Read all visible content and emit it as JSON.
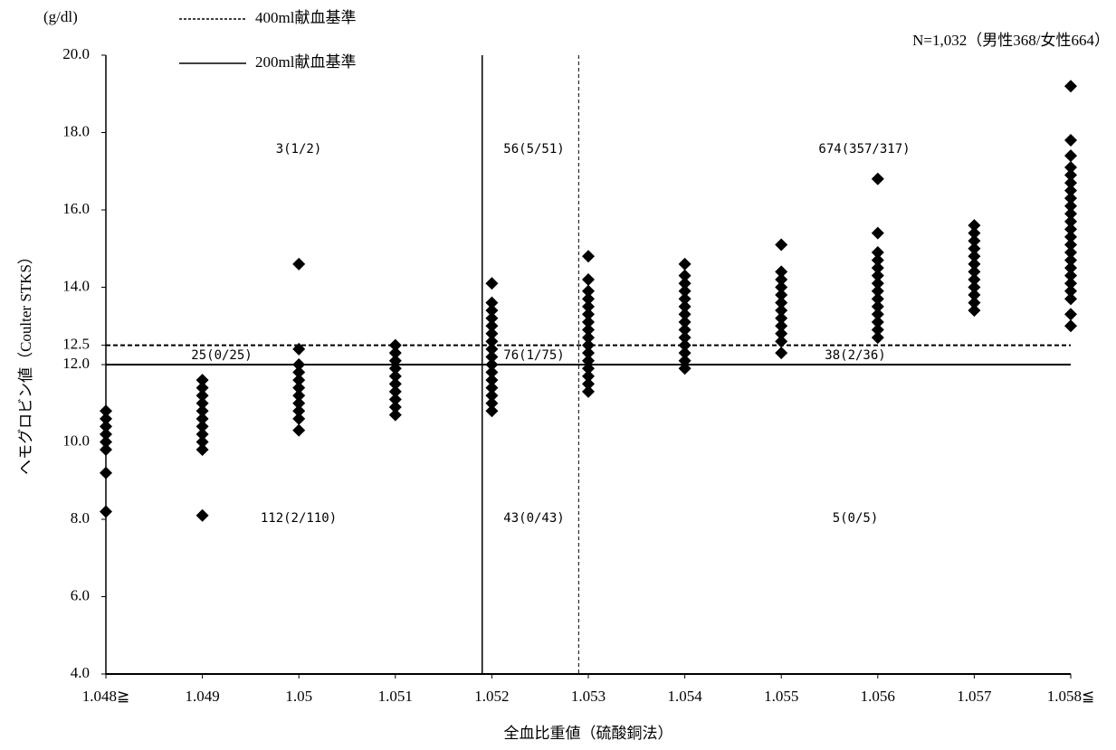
{
  "chart_data": {
    "type": "scatter",
    "unit_label": "(g/dl)",
    "subtitle": "N=1,032（男性368/女性664）",
    "y_label": "ヘモグロビン値（Coulter STKS）",
    "x_label": "全血比重値（硫酸銅法）",
    "color": "#000000",
    "xlim": [
      1.048,
      1.058
    ],
    "xticks": [
      {
        "value": 1.048,
        "label": "1.048≧"
      },
      1.049,
      1.05,
      1.051,
      1.052,
      1.053,
      1.054,
      1.055,
      1.056,
      1.057,
      {
        "value": 1.058,
        "label": "1.058≦"
      }
    ],
    "ylim": [
      4,
      20
    ],
    "yticks": [
      {
        "value": 4,
        "label": "4.0"
      },
      {
        "value": 6,
        "label": "6.0"
      },
      {
        "value": 8,
        "label": "8.0"
      },
      {
        "value": 10,
        "label": "10.0"
      },
      {
        "value": 12,
        "label": "12.0"
      },
      12.5,
      {
        "value": 14,
        "label": "14.0"
      },
      {
        "value": 16,
        "label": "16.0"
      },
      {
        "value": 18,
        "label": "18.0"
      },
      {
        "value": 20,
        "label": "20.0"
      }
    ],
    "reference_lines": [
      {
        "name": "400ml献血基準",
        "value": 12.5,
        "style": "dashed"
      },
      {
        "name": "200ml献血基準",
        "value": 12.0,
        "style": "solid"
      }
    ],
    "vertical_lines": [
      {
        "value": 1.0519,
        "style": "solid"
      },
      {
        "value": 1.0529,
        "style": "dashed"
      }
    ],
    "annotations": [
      "3(1/2)",
      "56(5/51)",
      "674(357/317)",
      "25(0/25)",
      "76(1/75)",
      "38(2/36)",
      "112(2/110)",
      "43(0/43)",
      "5(0/5)"
    ],
    "x": [
      1.048,
      1.048,
      1.048,
      1.048,
      1.048,
      1.048,
      1.048,
      1.048,
      1.049,
      1.049,
      1.049,
      1.049,
      1.049,
      1.049,
      1.049,
      1.049,
      1.049,
      1.049,
      1.049,
      1.05,
      1.05,
      1.05,
      1.05,
      1.05,
      1.05,
      1.05,
      1.05,
      1.05,
      1.05,
      1.05,
      1.051,
      1.051,
      1.051,
      1.051,
      1.051,
      1.051,
      1.051,
      1.051,
      1.051,
      1.051,
      1.052,
      1.052,
      1.052,
      1.052,
      1.052,
      1.052,
      1.052,
      1.052,
      1.052,
      1.052,
      1.052,
      1.052,
      1.052,
      1.052,
      1.052,
      1.052,
      1.053,
      1.053,
      1.053,
      1.053,
      1.053,
      1.053,
      1.053,
      1.053,
      1.053,
      1.053,
      1.053,
      1.053,
      1.053,
      1.053,
      1.053,
      1.053,
      1.054,
      1.054,
      1.054,
      1.054,
      1.054,
      1.054,
      1.054,
      1.054,
      1.054,
      1.054,
      1.054,
      1.054,
      1.054,
      1.054,
      1.055,
      1.055,
      1.055,
      1.055,
      1.055,
      1.055,
      1.055,
      1.055,
      1.055,
      1.055,
      1.055,
      1.055,
      1.056,
      1.056,
      1.056,
      1.056,
      1.056,
      1.056,
      1.056,
      1.056,
      1.056,
      1.056,
      1.056,
      1.056,
      1.056,
      1.056,
      1.057,
      1.057,
      1.057,
      1.057,
      1.057,
      1.057,
      1.057,
      1.057,
      1.057,
      1.057,
      1.057,
      1.057,
      1.058,
      1.058,
      1.058,
      1.058,
      1.058,
      1.058,
      1.058,
      1.058,
      1.058,
      1.058,
      1.058,
      1.058,
      1.058,
      1.058,
      1.058,
      1.058,
      1.058,
      1.058,
      1.058,
      1.058,
      1.058,
      1.058,
      1.058
    ],
    "values": [
      8.2,
      9.2,
      9.8,
      10.0,
      10.2,
      10.4,
      10.6,
      10.8,
      8.1,
      9.8,
      10.0,
      10.2,
      10.4,
      10.6,
      10.8,
      11.0,
      11.2,
      11.4,
      11.6,
      10.3,
      10.6,
      10.8,
      11.0,
      11.2,
      11.4,
      11.6,
      11.8,
      12.0,
      12.4,
      14.6,
      10.7,
      10.9,
      11.1,
      11.3,
      11.5,
      11.7,
      11.9,
      12.1,
      12.3,
      12.5,
      10.8,
      11.0,
      11.2,
      11.4,
      11.6,
      11.8,
      12.0,
      12.2,
      12.4,
      12.6,
      12.8,
      13.0,
      13.2,
      13.4,
      13.6,
      14.1,
      11.3,
      11.5,
      11.7,
      11.9,
      12.1,
      12.3,
      12.5,
      12.7,
      12.9,
      13.1,
      13.3,
      13.5,
      13.7,
      13.9,
      14.2,
      14.8,
      11.9,
      12.1,
      12.3,
      12.5,
      12.7,
      12.9,
      13.1,
      13.3,
      13.5,
      13.7,
      13.9,
      14.1,
      14.3,
      14.6,
      12.3,
      12.6,
      12.8,
      13.0,
      13.2,
      13.4,
      13.6,
      13.8,
      14.0,
      14.2,
      14.4,
      15.1,
      12.7,
      12.9,
      13.1,
      13.3,
      13.5,
      13.7,
      13.9,
      14.1,
      14.3,
      14.5,
      14.7,
      14.9,
      15.4,
      16.8,
      13.4,
      13.6,
      13.8,
      14.0,
      14.2,
      14.4,
      14.6,
      14.8,
      15.0,
      15.2,
      15.4,
      15.6,
      13.0,
      13.3,
      13.7,
      13.9,
      14.1,
      14.3,
      14.5,
      14.7,
      14.9,
      15.1,
      15.3,
      15.5,
      15.7,
      15.9,
      16.1,
      16.3,
      16.5,
      16.7,
      16.9,
      17.1,
      17.4,
      17.8,
      19.2
    ]
  }
}
